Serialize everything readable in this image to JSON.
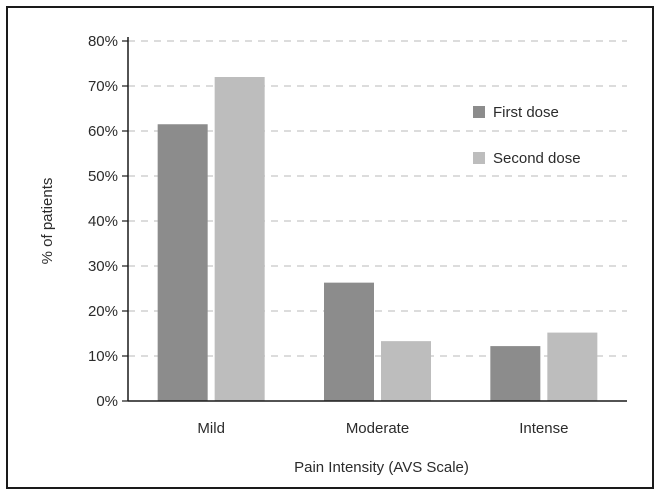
{
  "chart_data": {
    "type": "bar",
    "title": "",
    "xlabel": "Pain Intensity (AVS Scale)",
    "ylabel": "% of patients",
    "categories": [
      "Mild",
      "Moderate",
      "Intense"
    ],
    "series": [
      {
        "name": "First dose",
        "values": [
          61.5,
          26.3,
          12.2
        ],
        "color": "#8c8c8c"
      },
      {
        "name": "Second dose",
        "values": [
          72,
          13.3,
          15.2
        ],
        "color": "#bdbdbd"
      }
    ],
    "ylim": [
      0,
      80
    ],
    "yticks": [
      "0%",
      "10%",
      "20%",
      "30%",
      "40%",
      "50%",
      "60%",
      "70%",
      "80%"
    ],
    "grid": true,
    "legend_position": "top-right"
  }
}
